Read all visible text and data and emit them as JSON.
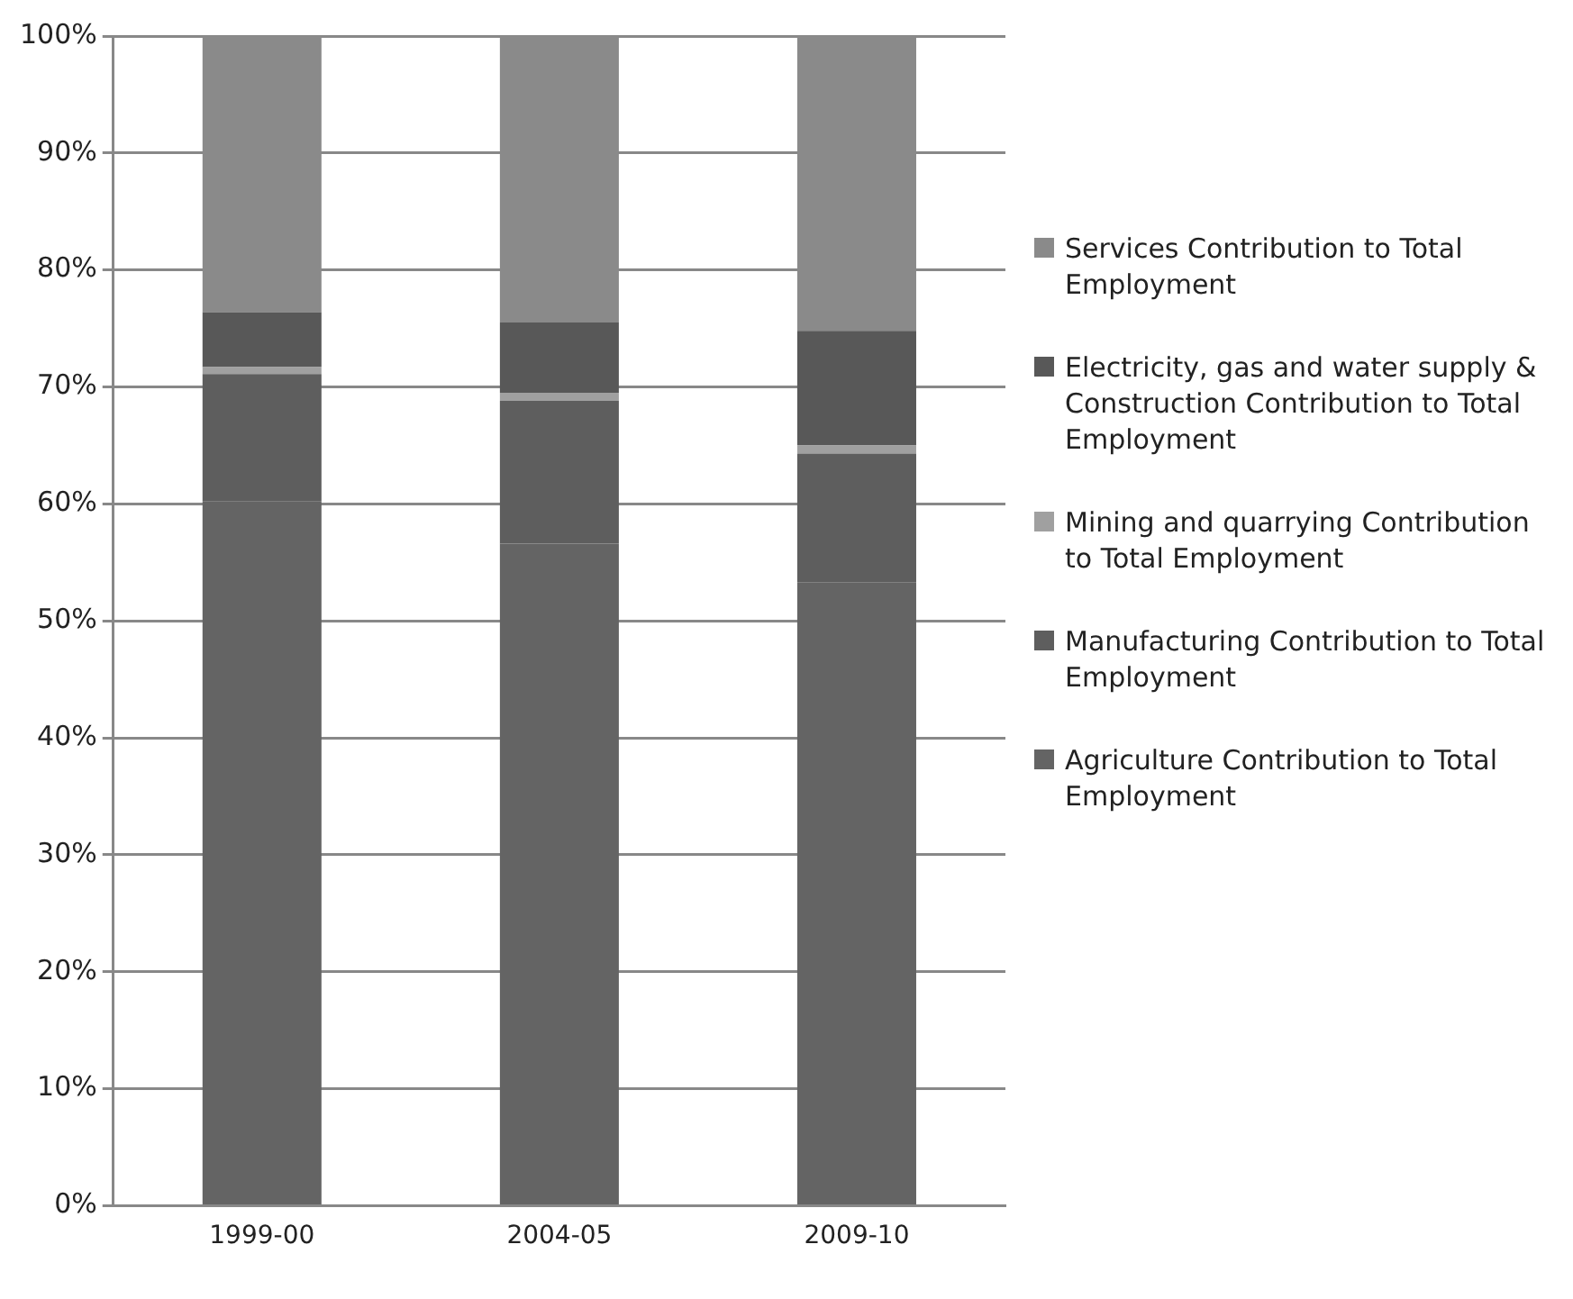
{
  "chart_data": {
    "type": "bar",
    "stacked": true,
    "categories": [
      "1999-00",
      "2004-05",
      "2009-10"
    ],
    "series": [
      {
        "name": "Agriculture Contribution to Total Employment",
        "color": "#646464",
        "values": [
          60.2,
          56.6,
          53.3
        ]
      },
      {
        "name": "Manufacturing Contribution to Total Employment",
        "color": "#5e5e5e",
        "values": [
          10.9,
          12.2,
          11.0
        ]
      },
      {
        "name": "Mining and quarrying Contribution to Total Employment",
        "color": "#a0a0a0",
        "values": [
          0.6,
          0.7,
          0.7
        ]
      },
      {
        "name": "Electricity, gas and water supply & Construction Contribution to Total Employment",
        "color": "#585858",
        "values": [
          4.7,
          6.0,
          9.8
        ]
      },
      {
        "name": "Services Contribution to Total Employment",
        "color": "#8a8a8a",
        "values": [
          23.6,
          24.5,
          25.2
        ]
      }
    ],
    "ylim": [
      0,
      100
    ],
    "yticks": [
      {
        "value": 0,
        "label": "0%"
      },
      {
        "value": 10,
        "label": "10%"
      },
      {
        "value": 20,
        "label": "20%"
      },
      {
        "value": 30,
        "label": "30%"
      },
      {
        "value": 40,
        "label": "40%"
      },
      {
        "value": 50,
        "label": "50%"
      },
      {
        "value": 60,
        "label": "60%"
      },
      {
        "value": 70,
        "label": "70%"
      },
      {
        "value": 80,
        "label": "80%"
      },
      {
        "value": 90,
        "label": "90%"
      },
      {
        "value": 100,
        "label": "100%"
      }
    ],
    "grid": "y",
    "legend": "right"
  }
}
